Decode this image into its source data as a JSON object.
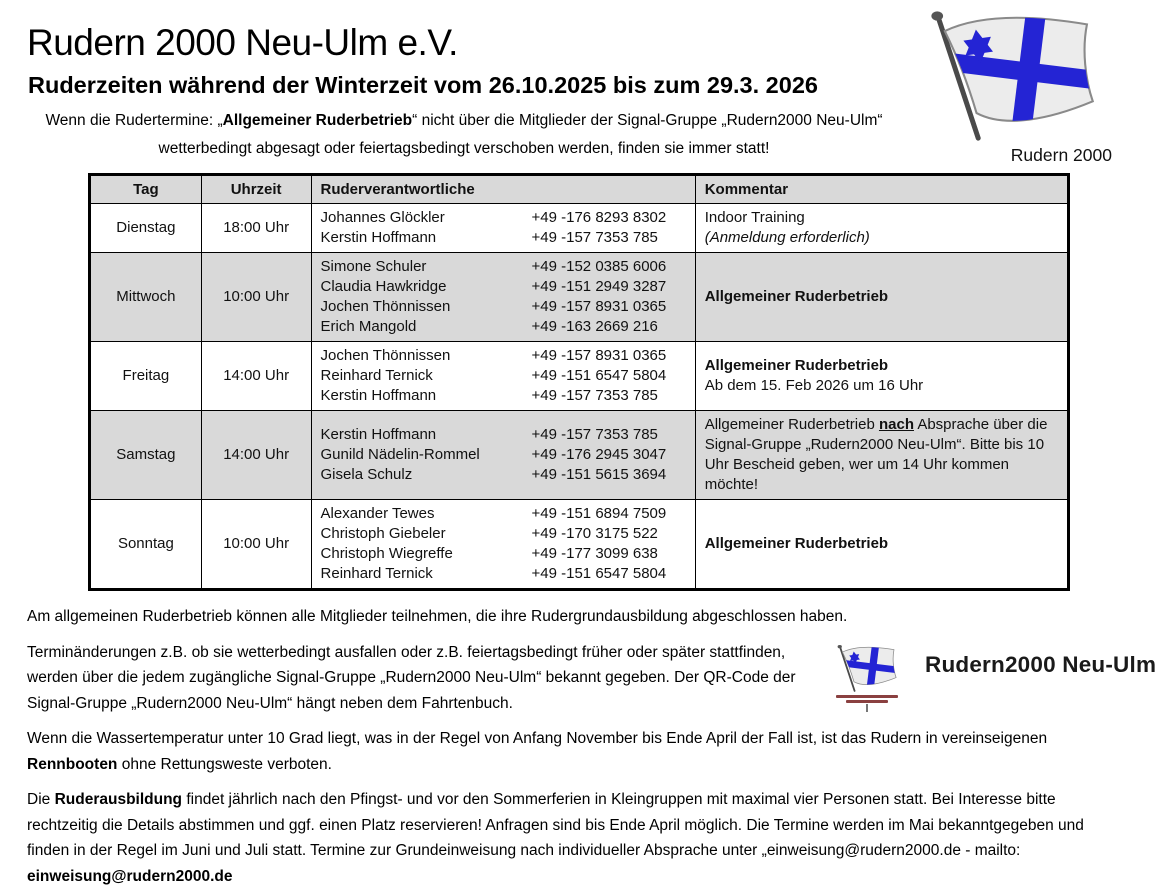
{
  "page": {
    "title": "Rudern 2000 Neu-Ulm e.V.",
    "subtitle": "Ruderzeiten während der Winterzeit vom 26.10.2025 bis zum 29.3. 2026"
  },
  "intro": {
    "segments": [
      {
        "t": "Wenn die Rudertermine: „"
      },
      {
        "t": "Allgemeiner Ruderbetrieb",
        "b": true
      },
      {
        "t": "“ nicht über die Mitglieder der Signal-Gruppe „Rudern2000 Neu-Ulm“ wetterbedingt abgesagt oder feiertagsbedingt verschoben werden, finden sie immer statt!"
      }
    ]
  },
  "logo": {
    "caption": "Rudern 2000"
  },
  "signal_logo": {
    "label": "Rudern2000 Neu-Ulm"
  },
  "colors": {
    "shade": "#d9d9d9",
    "flag_blue": "#2424d4"
  },
  "table": {
    "headers": [
      "Tag",
      "Uhrzeit",
      "Ruderverantwortliche",
      "Kommentar"
    ],
    "rows": [
      {
        "day": "Dienstag",
        "time": "18:00 Uhr",
        "shaded": false,
        "people": [
          {
            "name": "Johannes Glöckler",
            "phone": "+49 -176 8293 8302"
          },
          {
            "name": "Kerstin Hoffmann",
            "phone": "+49 -157 7353 785"
          }
        ],
        "comment": [
          [
            {
              "t": "Indoor Training"
            }
          ],
          [
            {
              "t": "(Anmeldung erforderlich)",
              "i": true
            }
          ]
        ]
      },
      {
        "day": "Mittwoch",
        "time": "10:00 Uhr",
        "shaded": true,
        "people": [
          {
            "name": "Simone Schuler",
            "phone": "+49 -152 0385 6006"
          },
          {
            "name": "Claudia Hawkridge",
            "phone": "+49 -151 2949 3287"
          },
          {
            "name": "Jochen Thönnissen",
            "phone": "+49 -157 8931 0365"
          },
          {
            "name": "Erich Mangold",
            "phone": "+49 -163 2669 216"
          }
        ],
        "comment": [
          [
            {
              "t": "Allgemeiner Ruderbetrieb",
              "b": true
            }
          ]
        ]
      },
      {
        "day": "Freitag",
        "time": "14:00 Uhr",
        "shaded": false,
        "people": [
          {
            "name": "Jochen Thönnissen",
            "phone": "+49 -157 8931 0365"
          },
          {
            "name": "Reinhard Ternick",
            "phone": "+49 -151 6547 5804"
          },
          {
            "name": "Kerstin Hoffmann",
            "phone": "+49 -157 7353 785"
          }
        ],
        "comment": [
          [
            {
              "t": "Allgemeiner Ruderbetrieb",
              "b": true
            }
          ],
          [
            {
              "t": "Ab dem 15. Feb 2026 um 16 Uhr"
            }
          ]
        ]
      },
      {
        "day": "Samstag",
        "time": "14:00 Uhr",
        "shaded": true,
        "people": [
          {
            "name": "Kerstin Hoffmann",
            "phone": "+49 -157 7353 785"
          },
          {
            "name": "Gunild Nädelin-Rommel",
            "phone": "+49 -176 2945 3047"
          },
          {
            "name": "Gisela Schulz",
            "phone": "+49 -151 5615 3694"
          }
        ],
        "comment": [
          [
            {
              "t": "Allgemeiner Ruderbetrieb "
            },
            {
              "t": "nach",
              "b": true,
              "u": true
            },
            {
              "t": " Absprache über die Signal-Gruppe „Rudern2000 Neu-Ulm“. Bitte bis 10 Uhr Bescheid geben, wer um 14 Uhr kommen möchte!"
            }
          ]
        ]
      },
      {
        "day": "Sonntag",
        "time": "10:00 Uhr",
        "shaded": false,
        "people": [
          {
            "name": "Alexander Tewes",
            "phone": "+49 -151 6894 7509"
          },
          {
            "name": "Christoph Giebeler",
            "phone": "+49 -170 3175 522"
          },
          {
            "name": "Christoph Wiegreffe",
            "phone": "+49 -177 3099 638"
          },
          {
            "name": "Reinhard Ternick",
            "phone": "+49 -151 6547 5804"
          }
        ],
        "comment": [
          [
            {
              "t": "Allgemeiner Ruderbetrieb",
              "b": true
            }
          ]
        ]
      }
    ]
  },
  "paragraphs": [
    [
      {
        "t": "Am allgemeinen Ruderbetrieb können alle Mitglieder teilnehmen, die ihre Rudergrundausbildung abgeschlossen haben."
      }
    ],
    [
      {
        "t": "Terminänderungen z.B. ob sie wetterbedingt ausfallen oder z.B. feiertagsbedingt früher oder später stattfinden, werden über die jedem zugängliche Signal-Gruppe „Rudern2000 Neu-Ulm“ bekannt gegeben. Der QR-Code der Signal-Gruppe „Rudern2000 Neu-Ulm“ hängt neben dem Fahrtenbuch."
      }
    ],
    [
      {
        "t": "Wenn die Wassertemperatur unter 10 Grad liegt, was in der Regel von Anfang November bis Ende April der Fall ist, ist das Rudern in vereinseigenen "
      },
      {
        "t": "Rennbooten",
        "b": true
      },
      {
        "t": " ohne Rettungsweste verboten."
      }
    ],
    [
      {
        "t": "Die "
      },
      {
        "t": "Ruderausbildung",
        "b": true
      },
      {
        "t": " findet jährlich nach den Pfingst- und vor den Sommerferien in Kleingruppen mit maximal vier Personen statt. Bei Interesse bitte rechtzeitig die Details abstimmen und ggf. einen Platz reservieren! Anfragen sind bis Ende April möglich. Die Termine werden im Mai bekanntgegeben und finden in der Regel im Juni und Juli statt. Termine zur Grundeinweisung nach individueller Absprache unter „einweisung@rudern2000.de - mailto: "
      },
      {
        "t": "einweisung@rudern2000.de",
        "b": true,
        "link": true
      }
    ]
  ]
}
